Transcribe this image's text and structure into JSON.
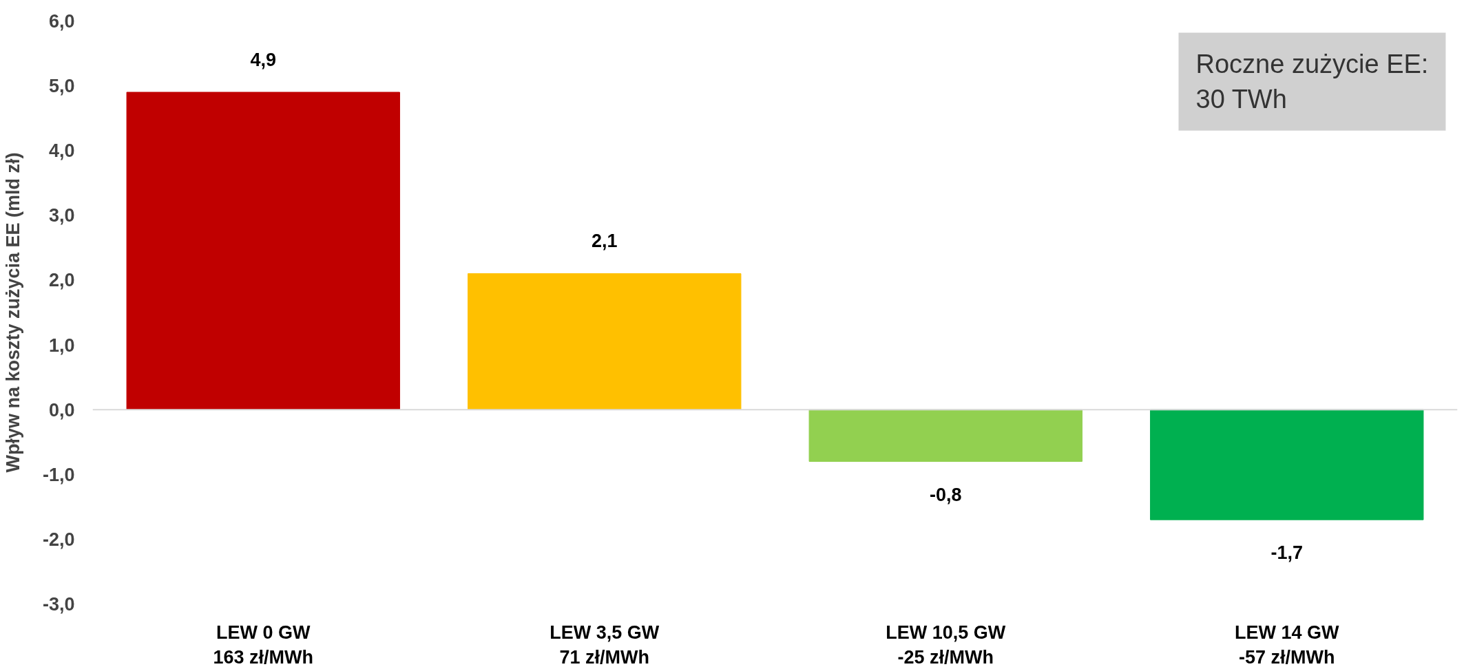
{
  "chart_data": {
    "type": "bar",
    "ylabel": "Wpływ na koszty zużycia EE (mld zł)",
    "categories": [
      "LEW 0 GW\n163 zł/MWh",
      "LEW 3,5 GW\n71 zł/MWh",
      "LEW 10,5 GW\n-25 zł/MWh",
      "LEW 14 GW\n-57 zł/MWh"
    ],
    "values": [
      4.9,
      2.1,
      -0.8,
      -1.7
    ],
    "colors": [
      "#c00000",
      "#ffc000",
      "#92d050",
      "#00b050"
    ],
    "value_labels": [
      "4,9",
      "2,1",
      "-0,8",
      "-1,7"
    ],
    "ylim": [
      -3,
      6
    ],
    "yticks": [
      {
        "value": -3,
        "label": "-3,0"
      },
      {
        "value": -2,
        "label": "-2,0"
      },
      {
        "value": -1,
        "label": "-1,0"
      },
      {
        "value": 0,
        "label": "0,0"
      },
      {
        "value": 1,
        "label": "1,0"
      },
      {
        "value": 2,
        "label": "2,0"
      },
      {
        "value": 3,
        "label": "3,0"
      },
      {
        "value": 4,
        "label": "4,0"
      },
      {
        "value": 5,
        "label": "5,0"
      },
      {
        "value": 6,
        "label": "6,0"
      }
    ],
    "grid": false,
    "ref_lines": [
      {
        "axis": "y",
        "value": 0,
        "color": "#d9d9d9"
      }
    ],
    "annotations": [
      "Roczne zużycie EE:\n30 TWh"
    ]
  }
}
